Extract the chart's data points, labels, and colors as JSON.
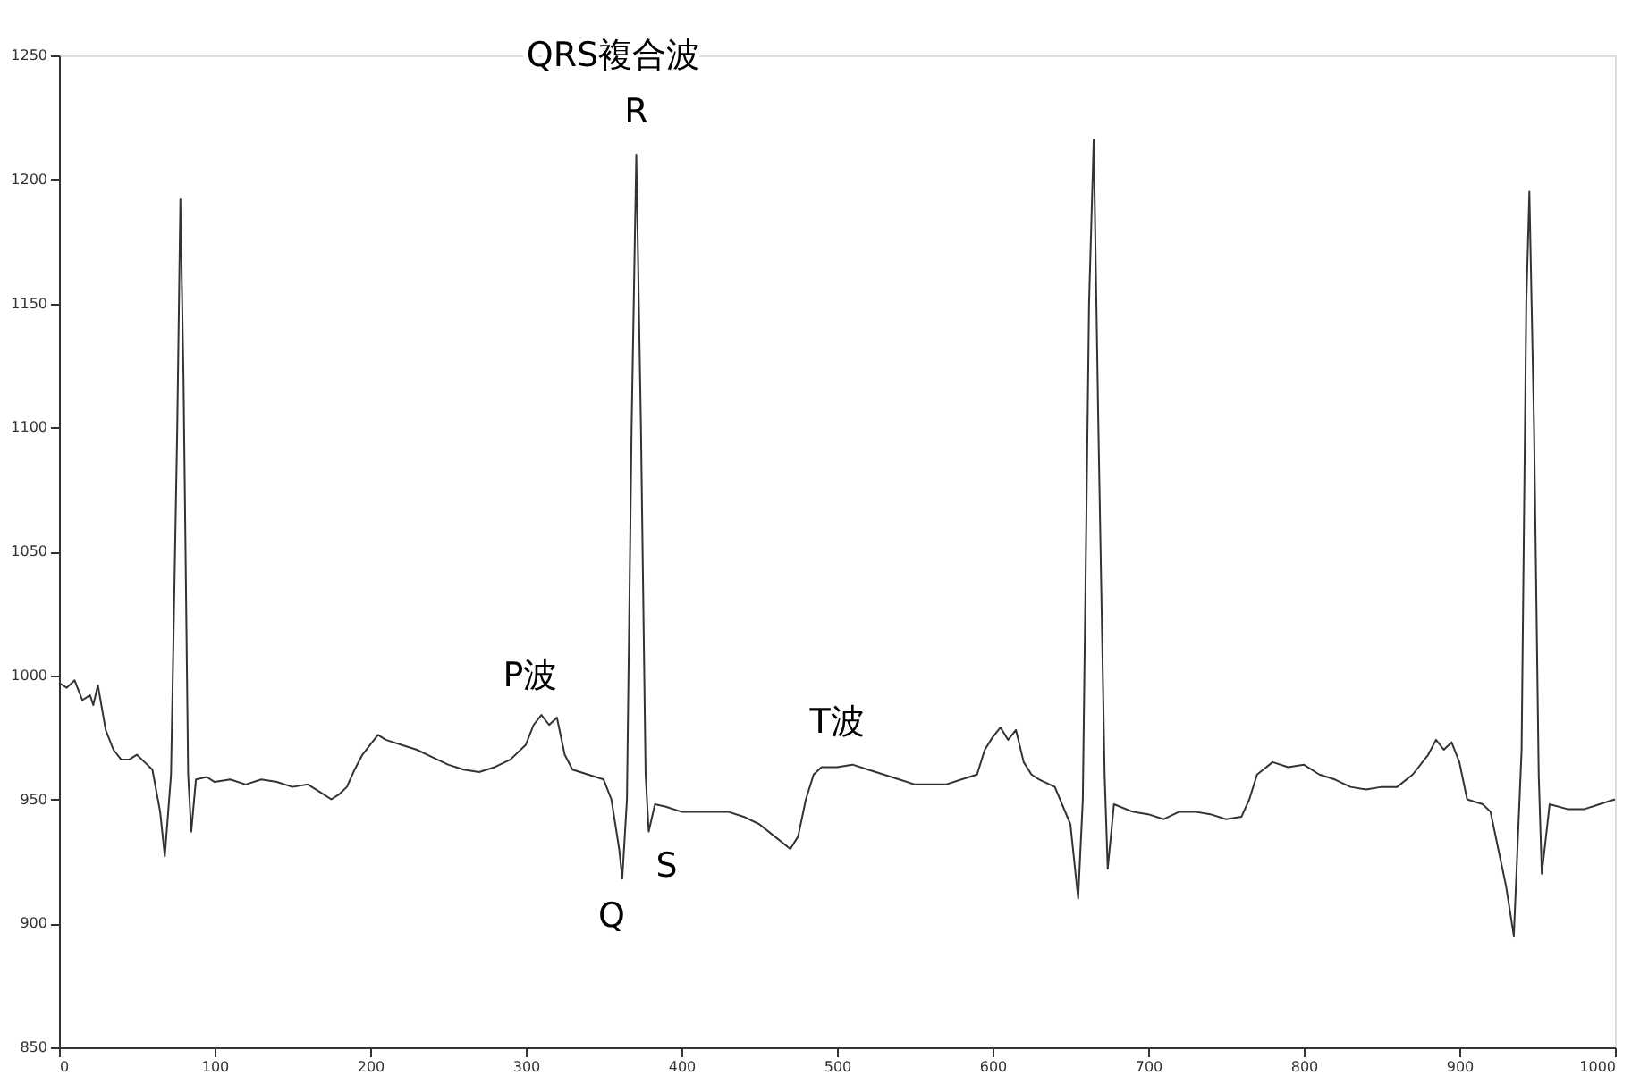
{
  "chart_data": {
    "type": "line",
    "x": [
      0,
      5,
      10,
      15,
      20,
      22,
      25,
      30,
      35,
      40,
      45,
      50,
      55,
      60,
      65,
      68,
      72,
      76,
      78,
      80,
      83,
      85,
      88,
      95,
      100,
      110,
      120,
      130,
      140,
      150,
      160,
      170,
      175,
      180,
      185,
      190,
      195,
      200,
      205,
      210,
      220,
      230,
      240,
      250,
      260,
      270,
      280,
      290,
      300,
      305,
      310,
      315,
      320,
      325,
      330,
      340,
      350,
      355,
      360,
      362,
      365,
      368,
      371,
      374,
      377,
      379,
      383,
      390,
      400,
      410,
      420,
      430,
      440,
      450,
      460,
      470,
      475,
      480,
      485,
      490,
      500,
      510,
      520,
      530,
      540,
      550,
      560,
      570,
      580,
      590,
      595,
      600,
      605,
      610,
      615,
      620,
      625,
      630,
      640,
      650,
      655,
      658,
      662,
      665,
      668,
      672,
      674,
      678,
      690,
      700,
      710,
      720,
      730,
      740,
      750,
      760,
      765,
      770,
      780,
      790,
      800,
      810,
      820,
      830,
      840,
      850,
      860,
      870,
      880,
      885,
      890,
      895,
      900,
      905,
      915,
      920,
      925,
      930,
      935,
      940,
      943,
      945,
      948,
      951,
      953,
      958,
      970,
      980,
      990,
      1000
    ],
    "series": [
      {
        "color": "#333333",
        "values": [
          997,
          995,
          998,
          990,
          992,
          988,
          996,
          978,
          970,
          966,
          966,
          968,
          965,
          962,
          945,
          927,
          960,
          1100,
          1192,
          1120,
          960,
          937,
          958,
          959,
          957,
          958,
          956,
          958,
          957,
          955,
          956,
          952,
          950,
          952,
          955,
          962,
          968,
          972,
          976,
          974,
          972,
          970,
          967,
          964,
          962,
          961,
          963,
          966,
          972,
          980,
          984,
          980,
          983,
          968,
          962,
          960,
          958,
          950,
          930,
          918,
          950,
          1100,
          1210,
          1100,
          960,
          937,
          948,
          947,
          945,
          945,
          945,
          945,
          943,
          940,
          935,
          930,
          935,
          950,
          960,
          963,
          963,
          964,
          962,
          960,
          958,
          956,
          956,
          956,
          958,
          960,
          970,
          975,
          979,
          974,
          978,
          965,
          960,
          958,
          955,
          940,
          910,
          950,
          1150,
          1216,
          1100,
          960,
          922,
          948,
          945,
          944,
          942,
          945,
          945,
          944,
          942,
          943,
          950,
          960,
          965,
          963,
          964,
          960,
          958,
          955,
          954,
          955,
          955,
          960,
          968,
          974,
          970,
          973,
          965,
          950,
          948,
          945,
          930,
          915,
          895,
          970,
          1150,
          1195,
          1100,
          960,
          920,
          948,
          946,
          946,
          948,
          950
        ]
      }
    ],
    "xlim": [
      0,
      1000
    ],
    "xticks": [
      0,
      100,
      200,
      300,
      400,
      500,
      600,
      700,
      800,
      900,
      1000
    ],
    "ylim": [
      850,
      1250
    ],
    "yticks": [
      850,
      900,
      950,
      1000,
      1050,
      1100,
      1150,
      1200,
      1250
    ],
    "grid": false,
    "marker": "none",
    "line_style": "solid",
    "annotations": [
      "QRS複合波",
      {
        "text": "R",
        "x": 371,
        "y": 1210
      },
      {
        "text": "P波",
        "x": 312,
        "y": 984
      },
      {
        "text": "Q",
        "x": 362,
        "y": 918
      },
      {
        "text": "S",
        "x": 379,
        "y": 937
      },
      {
        "text": "T波",
        "x": 500,
        "y": 964
      }
    ]
  }
}
